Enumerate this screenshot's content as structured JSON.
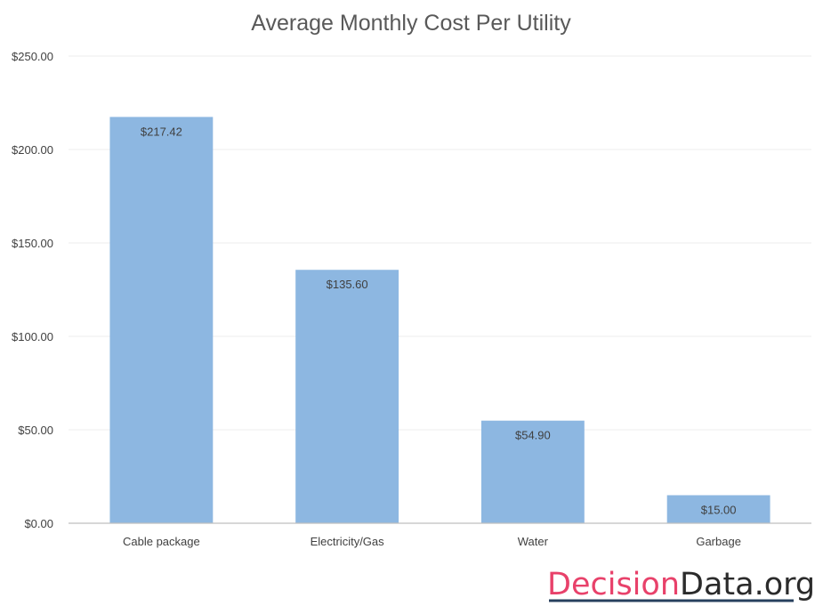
{
  "chart_data": {
    "type": "bar",
    "title": "Average Monthly Cost Per Utility",
    "categories": [
      "Cable package",
      "Electricity/Gas",
      "Water",
      "Garbage"
    ],
    "values": [
      217.42,
      135.6,
      54.9,
      15.0
    ],
    "data_labels": [
      "$217.42",
      "$135.60",
      "$54.90",
      "$15.00"
    ],
    "yticks": [
      0,
      50,
      100,
      150,
      200,
      250
    ],
    "ytick_labels": [
      "$0.00",
      "$50.00",
      "$100.00",
      "$150.00",
      "$200.00",
      "$250.00"
    ],
    "ylim": [
      0,
      250
    ],
    "xlabel": "",
    "ylabel": "",
    "grid": true,
    "bar_color": "#8db7e1"
  },
  "watermark": {
    "part1": "Decision",
    "part2": "Data.org",
    "color1": "#e8416a",
    "color2": "#2b2b2b",
    "underline_color": "#27405e"
  }
}
